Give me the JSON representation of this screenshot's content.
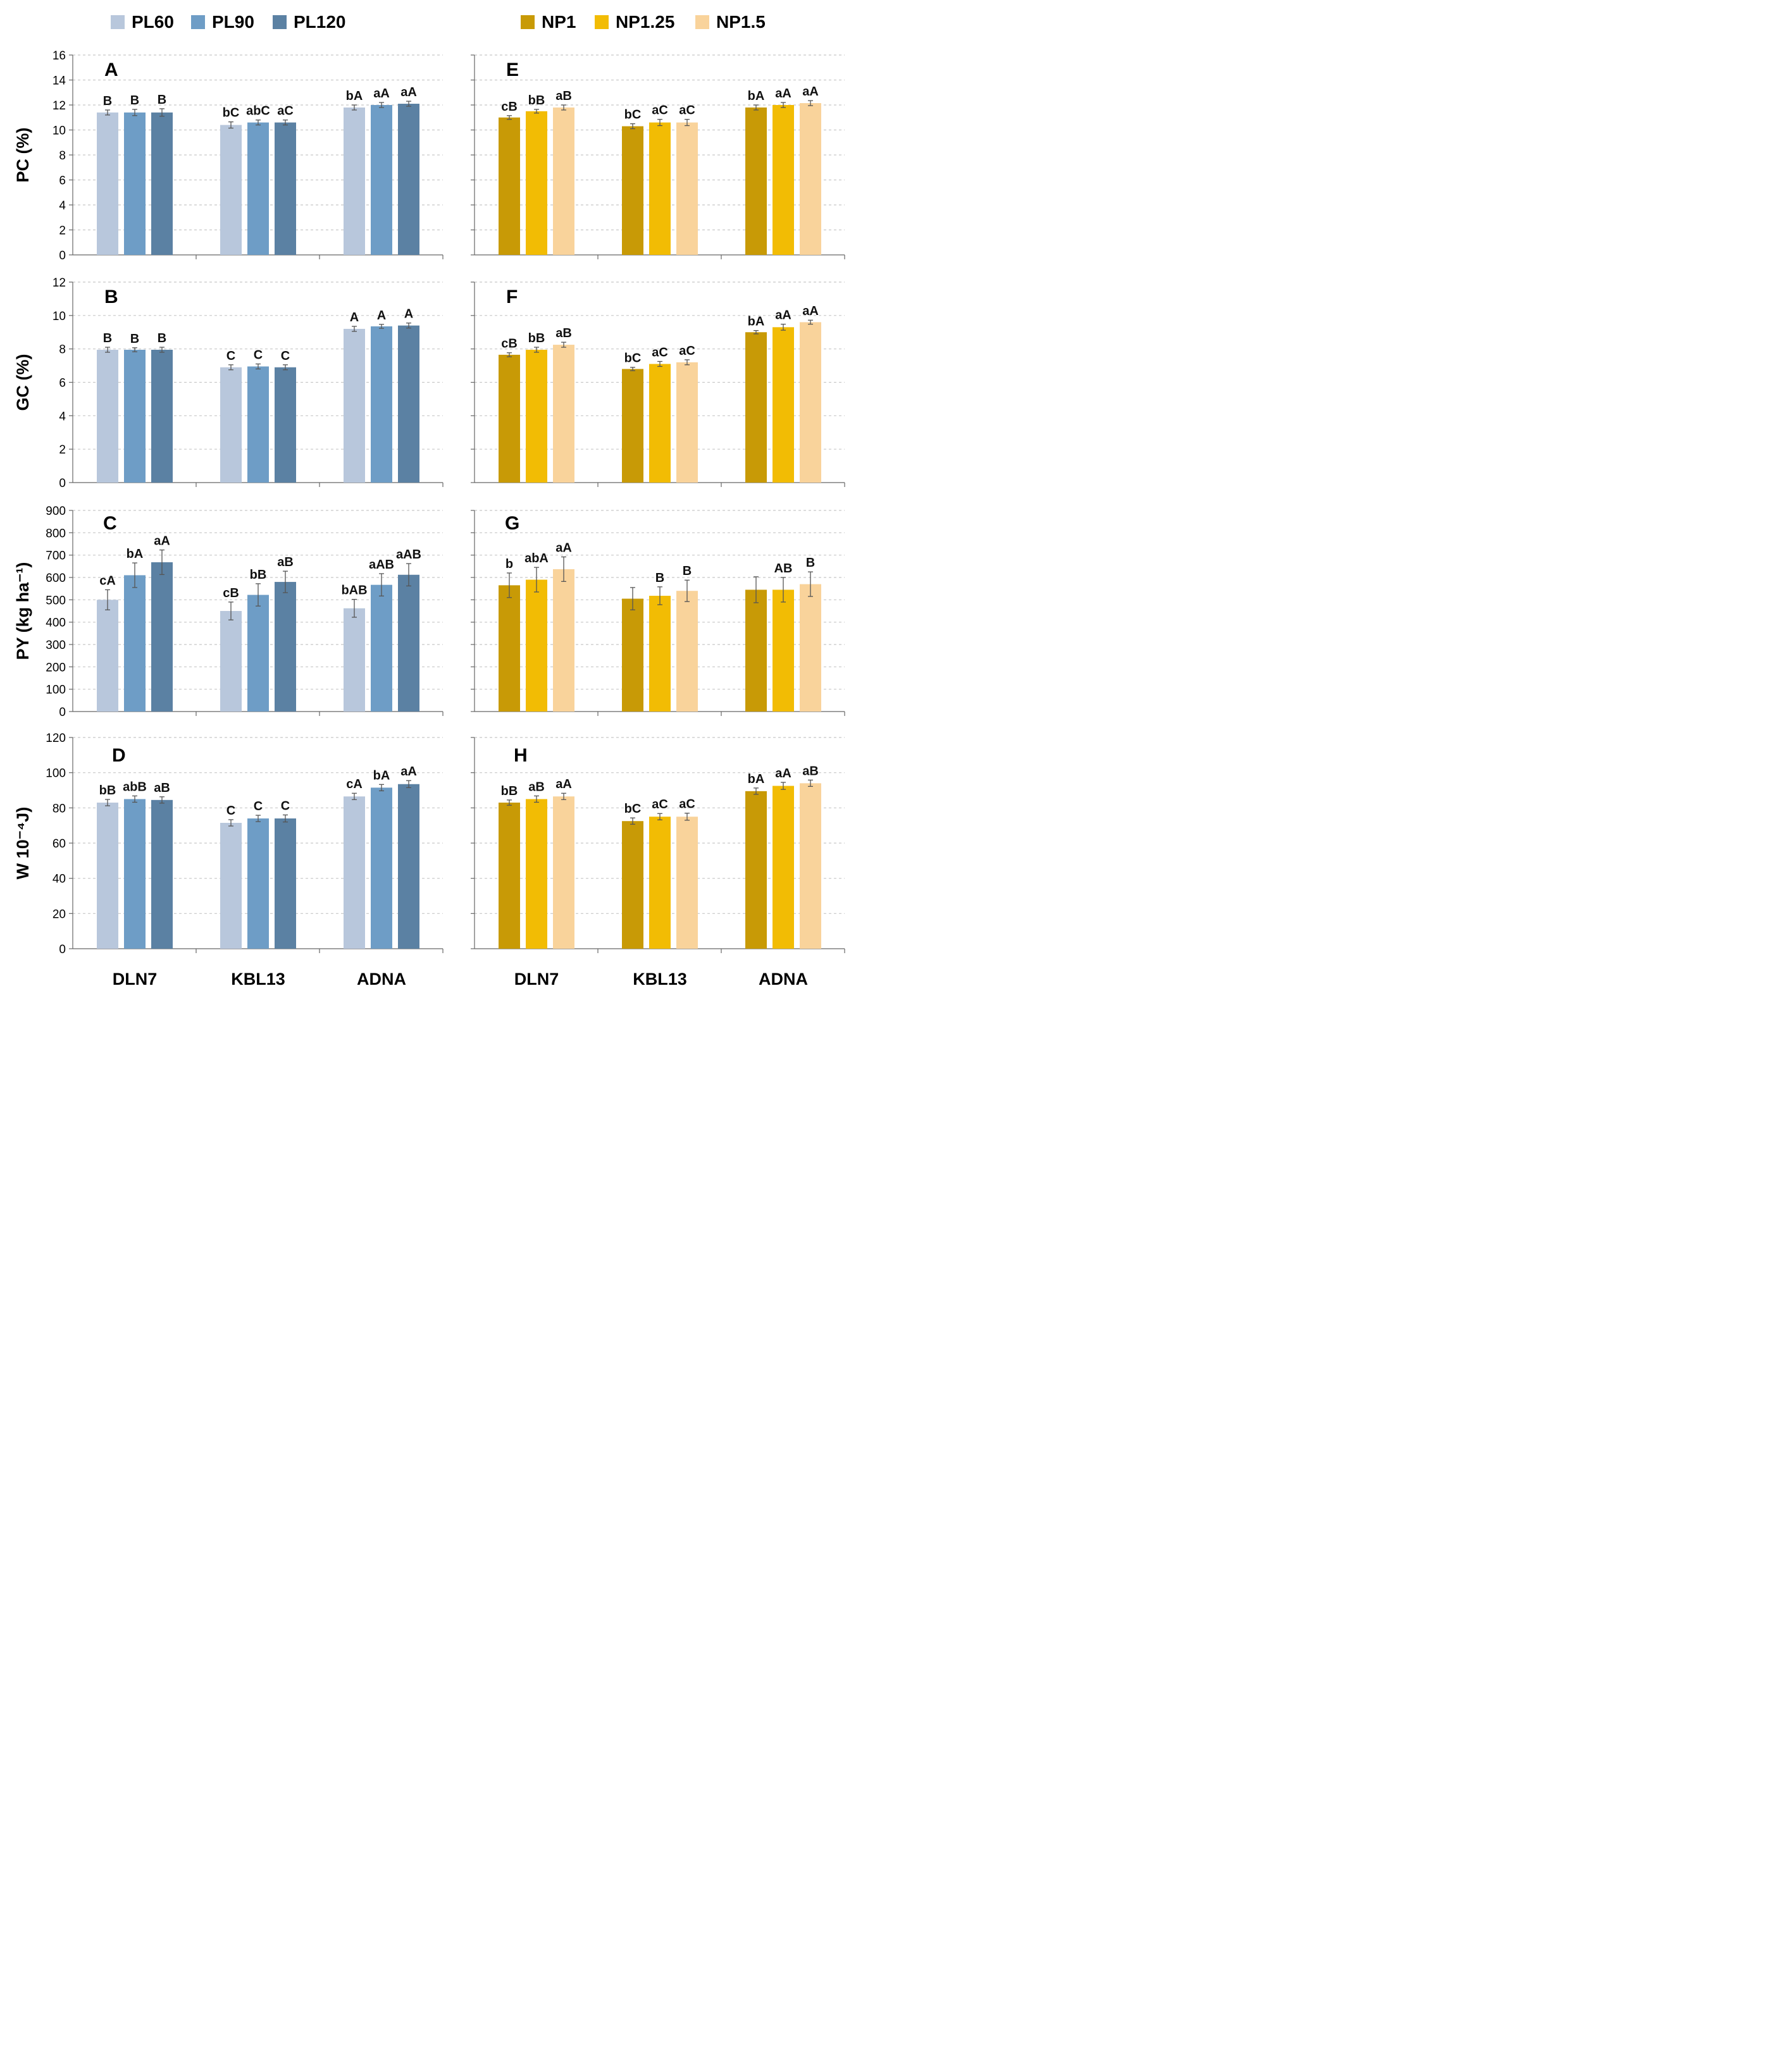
{
  "legend_left": [
    {
      "name": "PL60",
      "color": "#b8c7dc"
    },
    {
      "name": "PL90",
      "color": "#6e9dc6"
    },
    {
      "name": "PL120",
      "color": "#5b81a3"
    }
  ],
  "legend_right": [
    {
      "name": "NP1",
      "color": "#c89a06"
    },
    {
      "name": "NP1.25",
      "color": "#f2bc04"
    },
    {
      "name": "NP1.5",
      "color": "#f9d39b"
    }
  ],
  "chart_data": [
    {
      "id": "A",
      "type": "bar",
      "row": 0,
      "col": 0,
      "ylabel": "PC (%)",
      "ylim": [
        0,
        16
      ],
      "yticks": [
        0,
        2,
        4,
        6,
        8,
        10,
        12,
        14,
        16
      ],
      "grid": true,
      "categories": [
        "DLN7",
        "KBL13",
        "ADNA"
      ],
      "series": [
        {
          "name": "PL60",
          "values": [
            11.4,
            10.4,
            11.8
          ],
          "errors": [
            0.2,
            0.25,
            0.2
          ]
        },
        {
          "name": "PL90",
          "values": [
            11.4,
            10.6,
            12.0
          ],
          "errors": [
            0.25,
            0.2,
            0.2
          ]
        },
        {
          "name": "PL120",
          "values": [
            11.4,
            10.6,
            12.1
          ],
          "errors": [
            0.3,
            0.2,
            0.2
          ]
        }
      ],
      "annotations": [
        [
          "B",
          "B",
          "B"
        ],
        [
          "bC",
          "abC",
          "aC"
        ],
        [
          "bA",
          "aA",
          "aA"
        ]
      ]
    },
    {
      "id": "B",
      "type": "bar",
      "row": 1,
      "col": 0,
      "ylabel": "GC (%)",
      "ylim": [
        0,
        12
      ],
      "yticks": [
        0,
        2,
        4,
        6,
        8,
        10,
        12
      ],
      "grid": true,
      "categories": [
        "DLN7",
        "KBL13",
        "ADNA"
      ],
      "series": [
        {
          "name": "PL60",
          "values": [
            7.95,
            6.9,
            9.2
          ],
          "errors": [
            0.15,
            0.15,
            0.15
          ]
        },
        {
          "name": "PL90",
          "values": [
            7.95,
            6.95,
            9.35
          ],
          "errors": [
            0.12,
            0.15,
            0.12
          ]
        },
        {
          "name": "PL120",
          "values": [
            7.95,
            6.9,
            9.4
          ],
          "errors": [
            0.15,
            0.15,
            0.15
          ]
        }
      ],
      "annotations": [
        [
          "B",
          "B",
          "B"
        ],
        [
          "C",
          "C",
          "C"
        ],
        [
          "A",
          "A",
          "A"
        ]
      ]
    },
    {
      "id": "C",
      "type": "bar",
      "row": 2,
      "col": 0,
      "ylabel": "PY (kg ha⁻¹)",
      "ylim": [
        0,
        900
      ],
      "yticks": [
        0,
        100,
        200,
        300,
        400,
        500,
        600,
        700,
        800,
        900
      ],
      "grid": true,
      "categories": [
        "DLN7",
        "KBL13",
        "ADNA"
      ],
      "series": [
        {
          "name": "PL60",
          "values": [
            500,
            450,
            462
          ],
          "errors": [
            45,
            40,
            40
          ]
        },
        {
          "name": "PL90",
          "values": [
            610,
            522,
            567
          ],
          "errors": [
            55,
            50,
            50
          ]
        },
        {
          "name": "PL120",
          "values": [
            668,
            580,
            612
          ],
          "errors": [
            55,
            48,
            50
          ]
        }
      ],
      "annotations": [
        [
          "cA",
          "bA",
          "aA"
        ],
        [
          "cB",
          "bB",
          "aB"
        ],
        [
          "bAB",
          "aAB",
          "aAB"
        ]
      ]
    },
    {
      "id": "D",
      "type": "bar",
      "row": 3,
      "col": 0,
      "ylabel": "W 10⁻⁴J)",
      "ylim": [
        0,
        120
      ],
      "yticks": [
        0,
        20,
        40,
        60,
        80,
        100,
        120
      ],
      "grid": true,
      "categories": [
        "DLN7",
        "KBL13",
        "ADNA"
      ],
      "series": [
        {
          "name": "PL60",
          "values": [
            83,
            71.5,
            86.5
          ],
          "errors": [
            1.8,
            1.8,
            1.8
          ]
        },
        {
          "name": "PL90",
          "values": [
            85,
            74,
            91.5
          ],
          "errors": [
            1.8,
            1.8,
            1.8
          ]
        },
        {
          "name": "PL120",
          "values": [
            84.5,
            74,
            93.5
          ],
          "errors": [
            1.8,
            2,
            2
          ]
        }
      ],
      "annotations": [
        [
          "bB",
          "abB",
          "aB"
        ],
        [
          "C",
          "C",
          "C"
        ],
        [
          "cA",
          "bA",
          "aA"
        ]
      ]
    },
    {
      "id": "E",
      "type": "bar",
      "row": 0,
      "col": 1,
      "ylabel": "",
      "ylim": [
        0,
        16
      ],
      "yticks": [
        0,
        2,
        4,
        6,
        8,
        10,
        12,
        14,
        16
      ],
      "grid": true,
      "categories": [
        "DLN7",
        "KBL13",
        "ADNA"
      ],
      "series": [
        {
          "name": "NP1",
          "values": [
            11.0,
            10.3,
            11.8
          ],
          "errors": [
            0.15,
            0.2,
            0.2
          ]
        },
        {
          "name": "NP1.25",
          "values": [
            11.5,
            10.6,
            12.0
          ],
          "errors": [
            0.15,
            0.25,
            0.2
          ]
        },
        {
          "name": "NP1.5",
          "values": [
            11.8,
            10.6,
            12.15
          ],
          "errors": [
            0.2,
            0.25,
            0.2
          ]
        }
      ],
      "annotations": [
        [
          "cB",
          "bB",
          "aB"
        ],
        [
          "bC",
          "aC",
          "aC"
        ],
        [
          "bA",
          "aA",
          "aA"
        ]
      ]
    },
    {
      "id": "F",
      "type": "bar",
      "row": 1,
      "col": 1,
      "ylabel": "",
      "ylim": [
        0,
        12
      ],
      "yticks": [
        0,
        2,
        4,
        6,
        8,
        10,
        12
      ],
      "grid": true,
      "categories": [
        "DLN7",
        "KBL13",
        "ADNA"
      ],
      "series": [
        {
          "name": "NP1",
          "values": [
            7.65,
            6.8,
            9.0
          ],
          "errors": [
            0.12,
            0.1,
            0.1
          ]
        },
        {
          "name": "NP1.25",
          "values": [
            7.95,
            7.1,
            9.3
          ],
          "errors": [
            0.15,
            0.15,
            0.18
          ]
        },
        {
          "name": "NP1.5",
          "values": [
            8.25,
            7.2,
            9.6
          ],
          "errors": [
            0.15,
            0.15,
            0.12
          ]
        }
      ],
      "annotations": [
        [
          "cB",
          "bB",
          "aB"
        ],
        [
          "bC",
          "aC",
          "aC"
        ],
        [
          "bA",
          "aA",
          "aA"
        ]
      ]
    },
    {
      "id": "G",
      "type": "bar",
      "row": 2,
      "col": 1,
      "ylabel": "",
      "ylim": [
        0,
        900
      ],
      "yticks": [
        0,
        100,
        200,
        300,
        400,
        500,
        600,
        700,
        800,
        900
      ],
      "grid": true,
      "categories": [
        "DLN7",
        "KBL13",
        "ADNA"
      ],
      "series": [
        {
          "name": "NP1",
          "values": [
            565,
            505,
            545
          ],
          "errors": [
            55,
            50,
            58
          ]
        },
        {
          "name": "NP1.25",
          "values": [
            590,
            518,
            545
          ],
          "errors": [
            55,
            40,
            55
          ]
        },
        {
          "name": "NP1.5",
          "values": [
            637,
            540,
            570
          ],
          "errors": [
            55,
            48,
            55
          ]
        }
      ],
      "annotations": [
        [
          "b",
          "abA",
          "aA"
        ],
        [
          "",
          "B",
          "B"
        ],
        [
          "",
          "AB",
          "B"
        ]
      ]
    },
    {
      "id": "H",
      "type": "bar",
      "row": 3,
      "col": 1,
      "ylabel": "",
      "ylim": [
        0,
        120
      ],
      "yticks": [
        0,
        20,
        40,
        60,
        80,
        100,
        120
      ],
      "grid": true,
      "categories": [
        "DLN7",
        "KBL13",
        "ADNA"
      ],
      "series": [
        {
          "name": "NP1",
          "values": [
            83,
            72.5,
            89.5
          ],
          "errors": [
            1.5,
            1.8,
            1.8
          ]
        },
        {
          "name": "NP1.25",
          "values": [
            85,
            75,
            92.5
          ],
          "errors": [
            1.8,
            1.8,
            2
          ]
        },
        {
          "name": "NP1.5",
          "values": [
            86.5,
            75,
            94
          ],
          "errors": [
            1.8,
            2,
            1.8
          ]
        }
      ],
      "annotations": [
        [
          "bB",
          "aB",
          "aA"
        ],
        [
          "bC",
          "aC",
          "aC"
        ],
        [
          "bA",
          "aA",
          "aB"
        ]
      ]
    }
  ]
}
